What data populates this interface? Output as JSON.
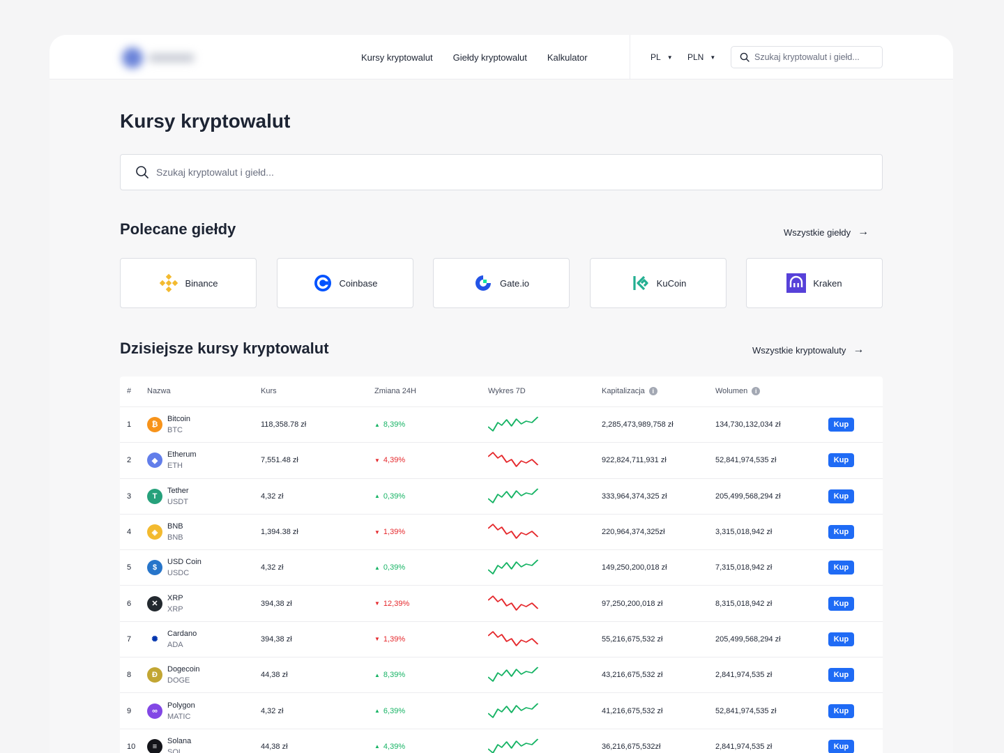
{
  "header": {
    "nav": [
      "Kursy kryptowalut",
      "Giełdy kryptowalut",
      "Kalkulator"
    ],
    "lang": "PL",
    "currency": "PLN",
    "search_placeholder": "Szukaj kryptowalut i giełd..."
  },
  "main": {
    "title": "Kursy kryptowalut",
    "search_placeholder": "Szukaj kryptowalut i giełd..."
  },
  "exchanges": {
    "title": "Polecane giełdy",
    "see_all": "Wszystkie giełdy",
    "items": [
      {
        "name": "Binance",
        "icon": "binance-icon",
        "color": "#f3ba2f"
      },
      {
        "name": "Coinbase",
        "icon": "coinbase-icon",
        "color": "#0052ff"
      },
      {
        "name": "Gate.io",
        "icon": "gateio-icon",
        "color": "#2354e6"
      },
      {
        "name": "KuCoin",
        "icon": "kucoin-icon",
        "color": "#23af91"
      },
      {
        "name": "Kraken",
        "icon": "kraken-icon",
        "color": "#5741d9"
      }
    ]
  },
  "rates": {
    "title": "Dzisiejsze kursy kryptowalut",
    "see_all": "Wszystkie kryptowaluty",
    "columns": [
      "#",
      "Nazwa",
      "Kurs",
      "Zmiana 24H",
      "Wykres 7D",
      "Kapitalizacja",
      "Wolumen"
    ],
    "buy_label": "Kup",
    "rows": [
      {
        "rank": "1",
        "name": "Bitcoin",
        "symbol": "BTC",
        "price": "118,358.78 zł",
        "change": "8,39%",
        "dir": "up",
        "cap": "2,285,473,989,758 zł",
        "volume": "134,730,132,034 zł",
        "icon": "bitcoin-icon",
        "color": "#f7931a"
      },
      {
        "rank": "2",
        "name": "Etherum",
        "symbol": "ETH",
        "price": "7,551.48 zł",
        "change": "4,39%",
        "dir": "down",
        "cap": "922,824,711,931 zł",
        "volume": "52,841,974,535 zł",
        "icon": "ethereum-icon",
        "color": "#627eea"
      },
      {
        "rank": "3",
        "name": "Tether",
        "symbol": "USDT",
        "price": "4,32 zł",
        "change": "0,39%",
        "dir": "up",
        "cap": "333,964,374,325 zł",
        "volume": "205,499,568,294 zł",
        "icon": "tether-icon",
        "color": "#26a17b"
      },
      {
        "rank": "4",
        "name": "BNB",
        "symbol": "BNB",
        "price": "1,394.38 zł",
        "change": "1,39%",
        "dir": "down",
        "cap": "220,964,374,325zł",
        "volume": "3,315,018,942 zł",
        "icon": "bnb-icon",
        "color": "#f3ba2f"
      },
      {
        "rank": "5",
        "name": "USD Coin",
        "symbol": "USDC",
        "price": "4,32 zł",
        "change": "0,39%",
        "dir": "up",
        "cap": "149,250,200,018 zł",
        "volume": "7,315,018,942 zł",
        "icon": "usdc-icon",
        "color": "#2775ca"
      },
      {
        "rank": "6",
        "name": "XRP",
        "symbol": "XRP",
        "price": "394,38 zł",
        "change": "12,39%",
        "dir": "down",
        "cap": "97,250,200,018 zł",
        "volume": "8,315,018,942 zł",
        "icon": "xrp-icon",
        "color": "#23292f"
      },
      {
        "rank": "7",
        "name": "Cardano",
        "symbol": "ADA",
        "price": "394,38 zł",
        "change": "1,39%",
        "dir": "down",
        "cap": "55,216,675,532 zł",
        "volume": "205,499,568,294 zł",
        "icon": "cardano-icon",
        "color": "#0033ad"
      },
      {
        "rank": "8",
        "name": "Dogecoin",
        "symbol": "DOGE",
        "price": "44,38 zł",
        "change": "8,39%",
        "dir": "up",
        "cap": "43,216,675,532 zł",
        "volume": "2,841,974,535 zł",
        "icon": "dogecoin-icon",
        "color": "#c2a633"
      },
      {
        "rank": "9",
        "name": "Polygon",
        "symbol": "MATIC",
        "price": "4,32 zł",
        "change": "6,39%",
        "dir": "up",
        "cap": "41,216,675,532 zł",
        "volume": "52,841,974,535 zł",
        "icon": "polygon-icon",
        "color": "#8247e5"
      },
      {
        "rank": "10",
        "name": "Solana",
        "symbol": "SOL",
        "price": "44,38 zł",
        "change": "4,39%",
        "dir": "up",
        "cap": "36,216,675,532zł",
        "volume": "2,841,974,535 zł",
        "icon": "solana-icon",
        "color": "#14151a"
      }
    ]
  }
}
